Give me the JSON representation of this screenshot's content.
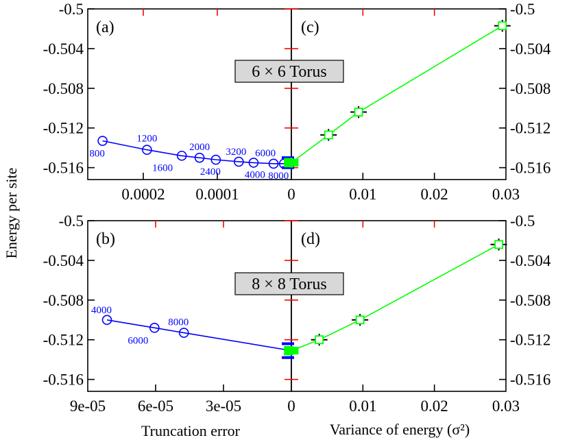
{
  "figure": {
    "ylabel": "Energy per site",
    "xlabel_left": "Truncation error",
    "xlabel_right": "Variance of energy (σ²)"
  },
  "chart_data": [
    {
      "type": "line",
      "panel": "(a)",
      "system_label": "6 × 6 Torus",
      "xlabel": "Truncation error",
      "ylabel": "Energy per site",
      "x_reversed": true,
      "xlim": [
        0.000275,
        0
      ],
      "ylim": [
        -0.5172,
        -0.5
      ],
      "xticks": [
        0.0002,
        0.0001,
        0
      ],
      "xtick_labels": [
        "0.0002",
        "0.0001",
        "0"
      ],
      "yticks": [
        -0.5,
        -0.504,
        -0.508,
        -0.512,
        -0.516
      ],
      "ytick_labels": [
        "-0.5",
        "-0.504",
        "-0.508",
        "-0.512",
        "-0.516"
      ],
      "points": [
        {
          "x": 0.000255,
          "y": -0.5133,
          "label": "800"
        },
        {
          "x": 0.000195,
          "y": -0.5142,
          "label": "1200"
        },
        {
          "x": 0.000148,
          "y": -0.5148,
          "label": "1600"
        },
        {
          "x": 0.000124,
          "y": -0.515,
          "label": "2000"
        },
        {
          "x": 0.000102,
          "y": -0.5152,
          "label": "2400"
        },
        {
          "x": 7.1e-05,
          "y": -0.5154,
          "label": "3200"
        },
        {
          "x": 5.1e-05,
          "y": -0.5155,
          "label": "4000"
        },
        {
          "x": 2.4e-05,
          "y": -0.5156,
          "label": "6000"
        },
        {
          "x": 1e-05,
          "y": -0.5156,
          "label": "8000"
        }
      ],
      "extrapolated": {
        "x": 0,
        "y": -0.5155,
        "err": 0.0005
      }
    },
    {
      "type": "line",
      "panel": "(c)",
      "xlabel": "Variance of energy (σ²)",
      "xlim": [
        0,
        0.03
      ],
      "ylim": [
        -0.5172,
        -0.5
      ],
      "xticks": [
        0,
        0.01,
        0.02,
        0.03
      ],
      "xtick_labels": [
        "0",
        "0.01",
        "0.02",
        "0.03"
      ],
      "yticks": [
        -0.5,
        -0.504,
        -0.508,
        -0.512,
        -0.516
      ],
      "ytick_labels": [
        "-0.5",
        "-0.504",
        "-0.508",
        "-0.512",
        "-0.516"
      ],
      "points": [
        {
          "x": 0.0052,
          "y": -0.5127,
          "err": 0.0006
        },
        {
          "x": 0.0094,
          "y": -0.5104,
          "err": 0.0006
        },
        {
          "x": 0.0295,
          "y": -0.5017,
          "err": 0.0006
        }
      ],
      "extrapolated": {
        "x": 0,
        "y": -0.5155,
        "err": 0.0005
      }
    },
    {
      "type": "line",
      "panel": "(b)",
      "system_label": "8 × 8 Torus",
      "xlabel": "Truncation error",
      "x_reversed": true,
      "xlim": [
        9e-05,
        0
      ],
      "ylim": [
        -0.5172,
        -0.5
      ],
      "xticks": [
        9e-05,
        6e-05,
        3e-05,
        0
      ],
      "xtick_labels": [
        "9e-05",
        "6e-05",
        "3e-05",
        "0"
      ],
      "yticks": [
        -0.5,
        -0.504,
        -0.508,
        -0.512,
        -0.516
      ],
      "ytick_labels": [
        "-0.5",
        "-0.504",
        "-0.508",
        "-0.512",
        "-0.516"
      ],
      "points": [
        {
          "x": 8.15e-05,
          "y": -0.51,
          "label": "4000"
        },
        {
          "x": 6.05e-05,
          "y": -0.5108,
          "label": "6000"
        },
        {
          "x": 4.75e-05,
          "y": -0.5113,
          "label": "8000"
        }
      ],
      "extrapolated": {
        "x": 0,
        "y": -0.5131,
        "err": 0.0007
      }
    },
    {
      "type": "line",
      "panel": "(d)",
      "xlabel": "Variance of energy (σ²)",
      "xlim": [
        0,
        0.03
      ],
      "ylim": [
        -0.5172,
        -0.5
      ],
      "xticks": [
        0,
        0.01,
        0.02,
        0.03
      ],
      "xtick_labels": [
        "0",
        "0.01",
        "0.02",
        "0.03"
      ],
      "yticks": [
        -0.5,
        -0.504,
        -0.508,
        -0.512,
        -0.516
      ],
      "ytick_labels": [
        "-0.5",
        "-0.504",
        "-0.508",
        "-0.512",
        "-0.516"
      ],
      "points": [
        {
          "x": 0.0039,
          "y": -0.512,
          "err": 0.0006
        },
        {
          "x": 0.0096,
          "y": -0.51,
          "err": 0.0006
        },
        {
          "x": 0.029,
          "y": -0.5024,
          "err": 0.0006
        }
      ],
      "extrapolated": {
        "x": 0,
        "y": -0.5131,
        "err": 0.0004
      }
    }
  ],
  "colors": {
    "dmrg": "#0000ff",
    "variance": "#00ff00",
    "errorbar": "#000000",
    "tick_inner": "#ff0000",
    "label_box": "#d8d8d8"
  }
}
